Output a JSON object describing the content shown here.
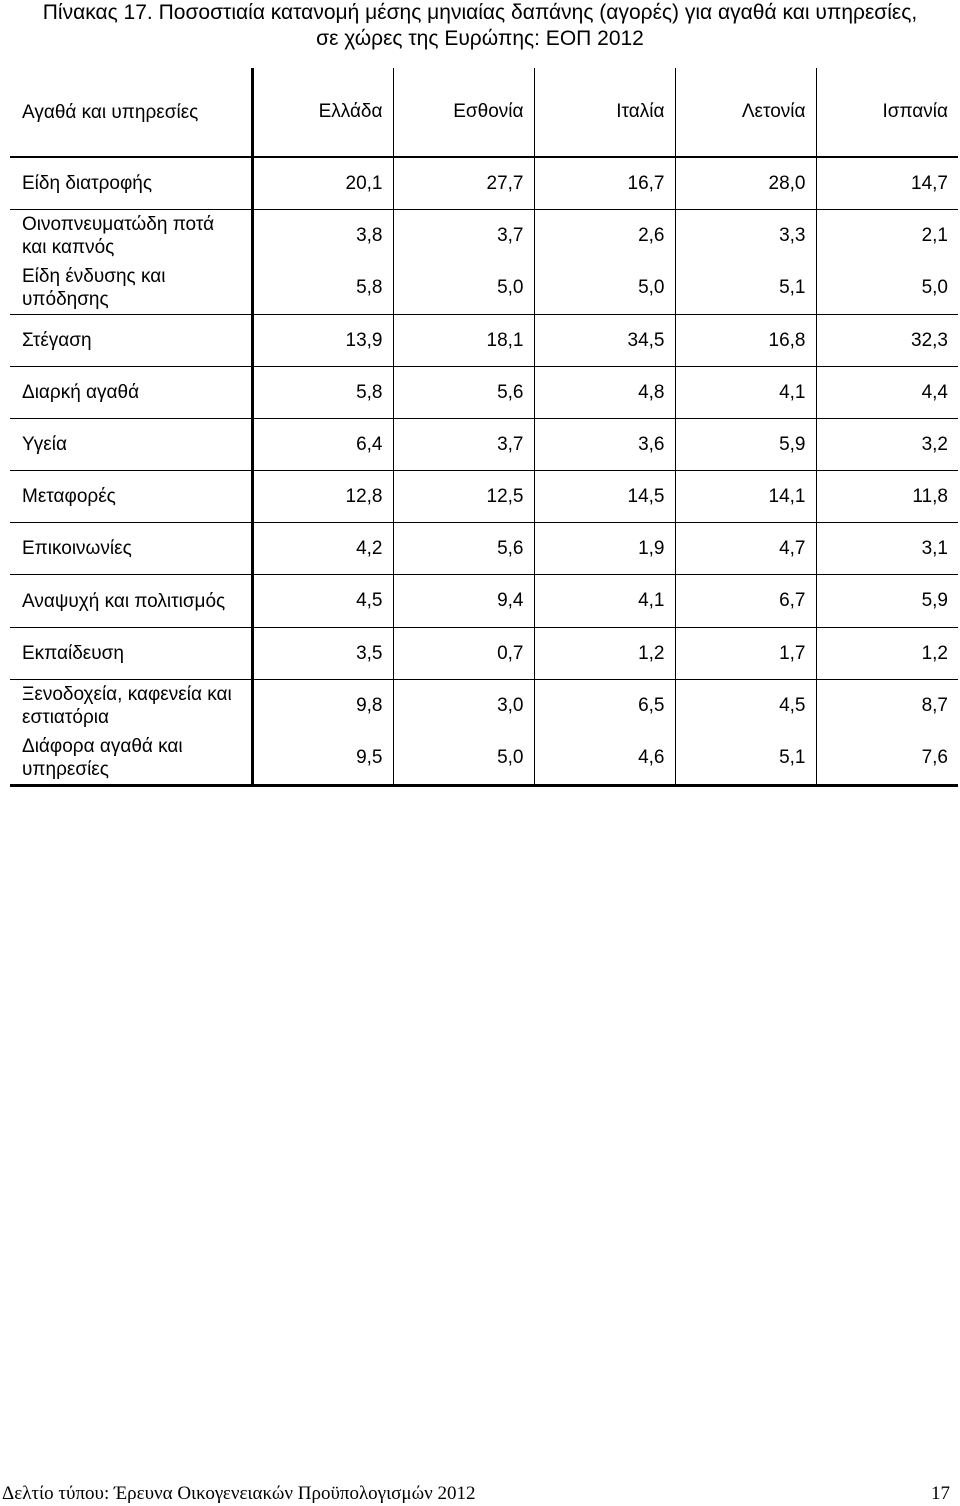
{
  "title": {
    "prefix": "Πίνακας 17.",
    "line1": "Ποσοστιαία κατανομή μέσης μηνιαίας δαπάνης (αγορές) για αγαθά και υπηρεσίες,",
    "line2": "σε χώρες της Ευρώπης: ΕΟΠ 2012"
  },
  "table": {
    "headers": [
      "Αγαθά και υπηρεσίες",
      "Ελλάδα",
      "Εσθονία",
      "Ιταλία",
      "Λετονία",
      "Ισπανία"
    ],
    "rows": [
      {
        "label": "Είδη διατροφής",
        "values": [
          "20,1",
          "27,7",
          "16,7",
          "28,0",
          "14,7"
        ]
      },
      {
        "label": "Οινοπνευματώδη ποτά και καπνός",
        "values": [
          "3,8",
          "3,7",
          "2,6",
          "3,3",
          "2,1"
        ]
      },
      {
        "label": "Είδη ένδυσης και υπόδησης",
        "values": [
          "5,8",
          "5,0",
          "5,0",
          "5,1",
          "5,0"
        ]
      },
      {
        "label": "Στέγαση",
        "values": [
          "13,9",
          "18,1",
          "34,5",
          "16,8",
          "32,3"
        ]
      },
      {
        "label": "Διαρκή αγαθά",
        "values": [
          "5,8",
          "5,6",
          "4,8",
          "4,1",
          "4,4"
        ]
      },
      {
        "label": "Υγεία",
        "values": [
          "6,4",
          "3,7",
          "3,6",
          "5,9",
          "3,2"
        ]
      },
      {
        "label": "Μεταφορές",
        "values": [
          "12,8",
          "12,5",
          "14,5",
          "14,1",
          "11,8"
        ]
      },
      {
        "label": "Επικοινωνίες",
        "values": [
          "4,2",
          "5,6",
          "1,9",
          "4,7",
          "3,1"
        ]
      },
      {
        "label": "Αναψυχή και πολιτισμός",
        "values": [
          "4,5",
          "9,4",
          "4,1",
          "6,7",
          "5,9"
        ]
      },
      {
        "label": "Εκπαίδευση",
        "values": [
          "3,5",
          "0,7",
          "1,2",
          "1,7",
          "1,2"
        ]
      },
      {
        "label": "Ξενοδοχεία, καφενεία και εστιατόρια",
        "values": [
          "9,8",
          "3,0",
          "6,5",
          "4,5",
          "8,7"
        ]
      },
      {
        "label": "Διάφορα αγαθά και υπηρεσίες",
        "values": [
          "9,5",
          "5,0",
          "4,6",
          "5,1",
          "7,6"
        ]
      }
    ]
  },
  "footer": {
    "text": "Δελτίο τύπου: Έρευνα Οικογενειακών Προϋπολογισμών 2012",
    "page": "17"
  }
}
